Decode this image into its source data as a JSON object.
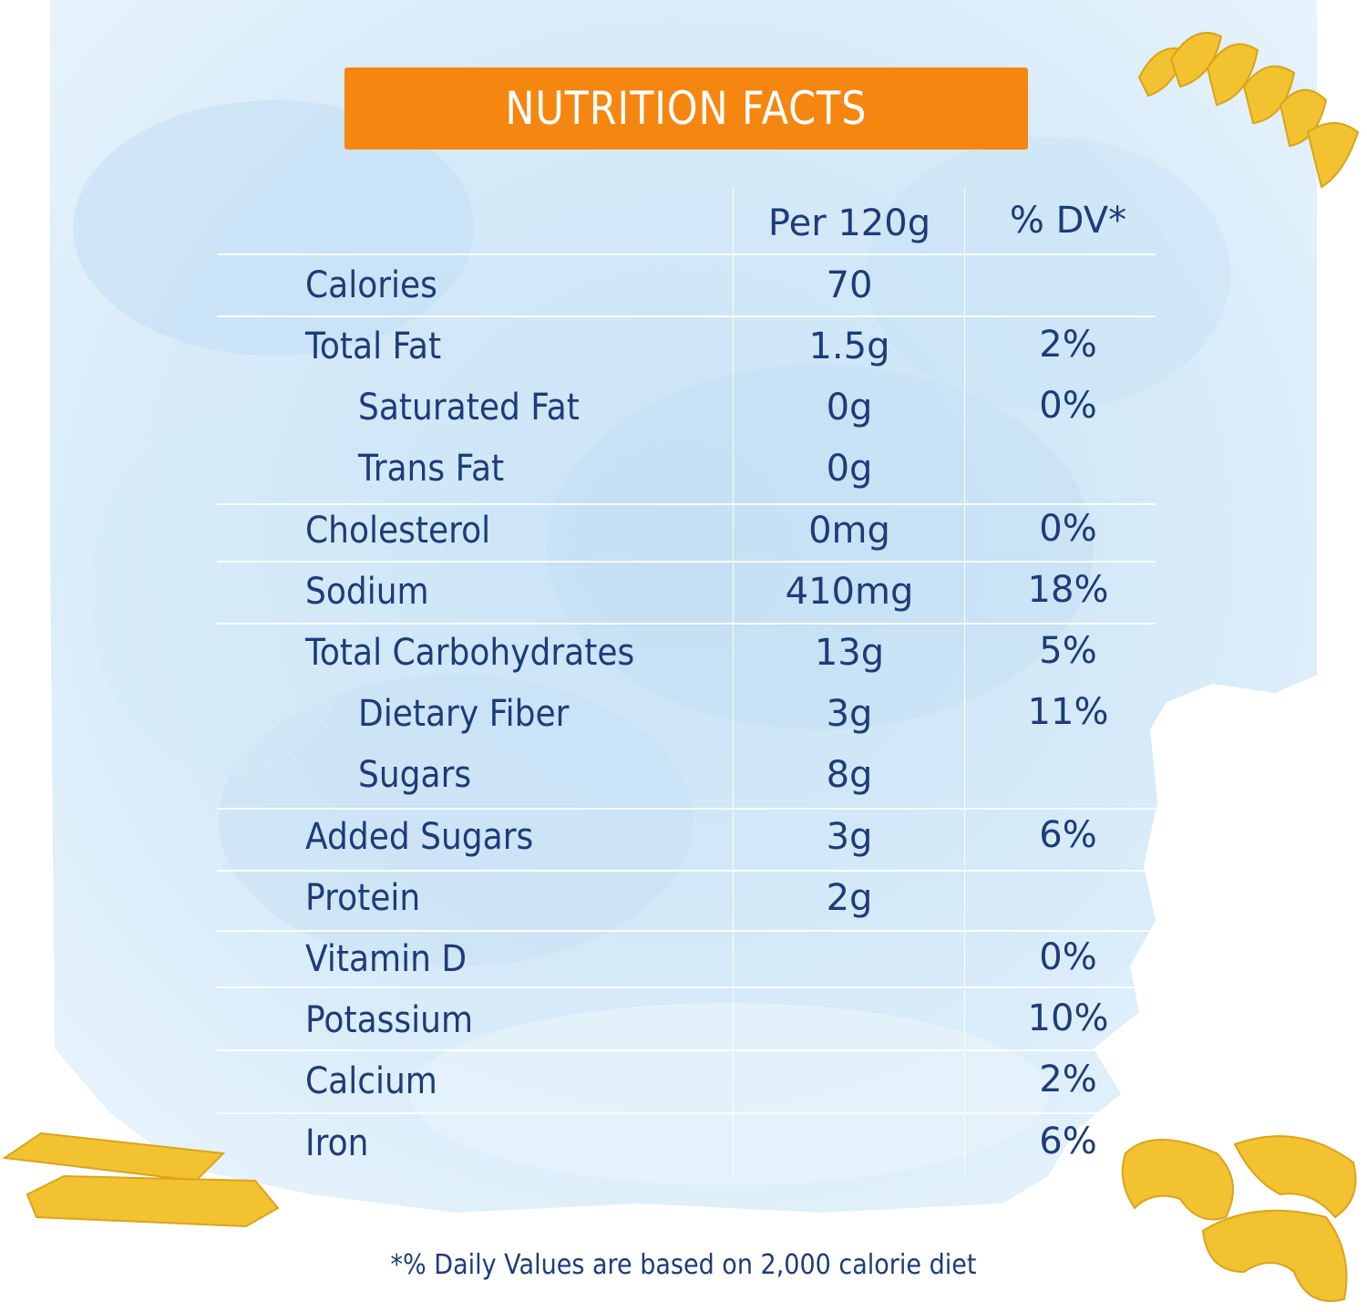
{
  "title": "NUTRITION FACTS",
  "columns": {
    "serving": "Per 120g",
    "dv": "% DV*"
  },
  "rows": [
    {
      "label": "Calories",
      "amount": "70",
      "dv": "",
      "indent": false
    },
    {
      "label": "Total Fat",
      "amount": "1.5g",
      "dv": "2%",
      "indent": false
    },
    {
      "label": "Saturated Fat",
      "amount": "0g",
      "dv": "0%",
      "indent": true
    },
    {
      "label": "Trans Fat",
      "amount": "0g",
      "dv": "",
      "indent": true
    },
    {
      "label": "Cholesterol",
      "amount": "0mg",
      "dv": "0%",
      "indent": false
    },
    {
      "label": "Sodium",
      "amount": "410mg",
      "dv": "18%",
      "indent": false
    },
    {
      "label": "Total Carbohydrates",
      "amount": "13g",
      "dv": "5%",
      "indent": false
    },
    {
      "label": "Dietary Fiber",
      "amount": "3g",
      "dv": "11%",
      "indent": true
    },
    {
      "label": "Sugars",
      "amount": "8g",
      "dv": "",
      "indent": true
    },
    {
      "label": "Added Sugars",
      "amount": "3g",
      "dv": "6%",
      "indent": false
    },
    {
      "label": "Protein",
      "amount": "2g",
      "dv": "",
      "indent": false
    },
    {
      "label": "Vitamin D",
      "amount": "",
      "dv": "0%",
      "indent": false
    },
    {
      "label": "Potassium",
      "amount": "",
      "dv": "10%",
      "indent": false
    },
    {
      "label": "Calcium",
      "amount": "",
      "dv": "2%",
      "indent": false
    },
    {
      "label": "Iron",
      "amount": "",
      "dv": "6%",
      "indent": false
    }
  ],
  "footnote": "*% Daily Values are based on 2,000 calorie diet",
  "colors": {
    "banner": "#f5860f",
    "text": "#1d3c78",
    "wash": "#cfe6f7",
    "pasta": "#f2c230"
  },
  "icons": [
    "fusilli-pasta-icon",
    "penne-pasta-icon",
    "elbow-pasta-icon"
  ]
}
